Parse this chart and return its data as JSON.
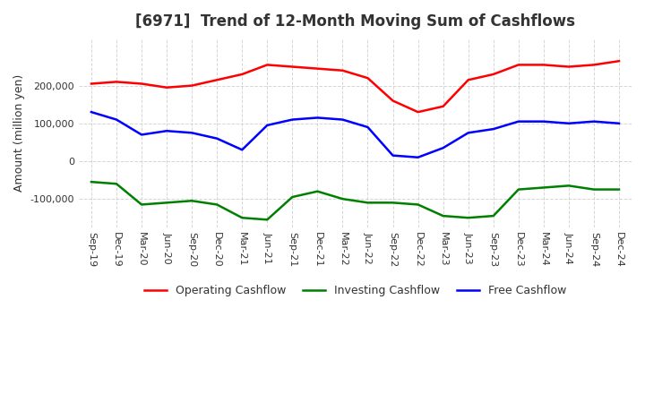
{
  "title": "[6971]  Trend of 12-Month Moving Sum of Cashflows",
  "ylabel": "Amount (million yen)",
  "x_labels": [
    "Sep-19",
    "Dec-19",
    "Mar-20",
    "Jun-20",
    "Sep-20",
    "Dec-20",
    "Mar-21",
    "Jun-21",
    "Sep-21",
    "Dec-21",
    "Mar-22",
    "Jun-22",
    "Sep-22",
    "Dec-22",
    "Mar-23",
    "Jun-23",
    "Sep-23",
    "Dec-23",
    "Mar-24",
    "Jun-24",
    "Sep-24",
    "Dec-24"
  ],
  "operating": [
    205000,
    210000,
    205000,
    195000,
    200000,
    215000,
    230000,
    255000,
    250000,
    245000,
    240000,
    220000,
    160000,
    130000,
    145000,
    215000,
    230000,
    255000,
    255000,
    250000,
    255000,
    265000
  ],
  "investing": [
    -55000,
    -60000,
    -115000,
    -110000,
    -105000,
    -115000,
    -150000,
    -155000,
    -95000,
    -80000,
    -100000,
    -110000,
    -110000,
    -115000,
    -145000,
    -150000,
    -145000,
    -75000,
    -70000,
    -65000,
    -75000,
    -75000
  ],
  "free": [
    130000,
    110000,
    70000,
    80000,
    75000,
    60000,
    30000,
    95000,
    110000,
    115000,
    110000,
    90000,
    15000,
    10000,
    35000,
    75000,
    85000,
    105000,
    105000,
    100000,
    105000,
    100000
  ],
  "op_color": "#ff0000",
  "inv_color": "#008000",
  "free_color": "#0000ff",
  "ylim": [
    -175000,
    325000
  ],
  "yticks": [
    -100000,
    0,
    100000,
    200000
  ],
  "background": "#ffffff",
  "grid_color": "#cccccc",
  "legend_labels": [
    "Operating Cashflow",
    "Investing Cashflow",
    "Free Cashflow"
  ]
}
